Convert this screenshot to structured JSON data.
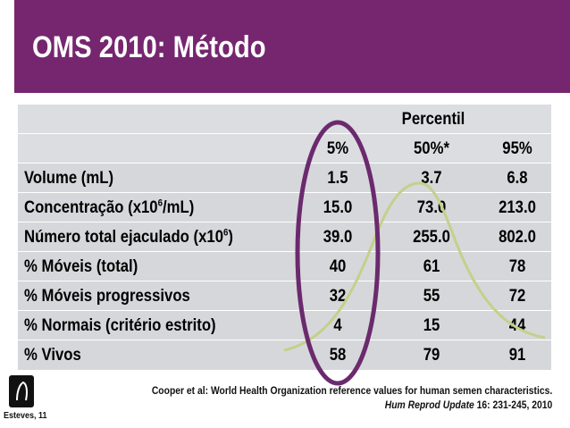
{
  "slide": {
    "title": "OMS 2010: Método"
  },
  "table": {
    "group_header": "Percentil",
    "columns": [
      "5%",
      "50%*",
      "95%"
    ],
    "rows": [
      {
        "label": "Volume (mL)",
        "values": [
          "1.5",
          "3.7",
          "6.8"
        ]
      },
      {
        "label_pre": "Concentração (x10",
        "label_sup": "6",
        "label_post": "/mL)",
        "values": [
          "15.0",
          "73.0",
          "213.0"
        ]
      },
      {
        "label_pre": "Número total ejaculado (x10",
        "label_sup": "6",
        "label_post": ")",
        "values": [
          "39.0",
          "255.0",
          "802.0"
        ]
      },
      {
        "label": "% Móveis (total)",
        "values": [
          "40",
          "61",
          "78"
        ]
      },
      {
        "label": "% Móveis progressivos",
        "values": [
          "32",
          "55",
          "72"
        ]
      },
      {
        "label": "% Normais (critério estrito)",
        "values": [
          "4",
          "15",
          "44"
        ]
      },
      {
        "label": "% Vivos",
        "values": [
          "58",
          "79",
          "91"
        ]
      }
    ]
  },
  "citation": {
    "line1": "Cooper et al: World Health Organization reference values for human semen characteristics.",
    "journal": "Hum Reprod Update",
    "ref": " 16: 231-245, 2010"
  },
  "logo": {
    "author": "Esteves, 11"
  },
  "colors": {
    "header": "#75266f",
    "ellipse": "#6b2a6e",
    "curve": "#c5cf8a"
  }
}
